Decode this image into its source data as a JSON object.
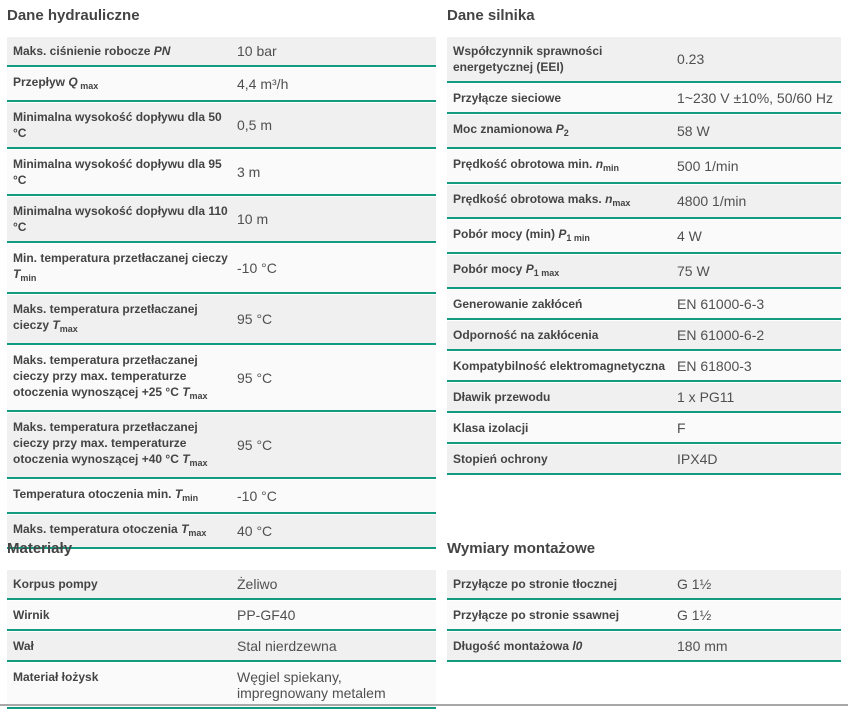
{
  "sections": [
    {
      "id": "hydraulic",
      "title": "Dane hydrauliczne",
      "rows": [
        {
          "label": [
            "Maks. ciśnienie robocze ",
            "PN",
            ""
          ],
          "value": "10 bar"
        },
        {
          "label": [
            "Przepływ ",
            "Q",
            " max"
          ],
          "value": "4,4 m³/h"
        },
        {
          "label": [
            "Minimalna wysokość dopływu dla 50 °C",
            "",
            ""
          ],
          "value": "0,5 m"
        },
        {
          "label": [
            "Minimalna wysokość dopływu dla 95 °C",
            "",
            ""
          ],
          "value": "3 m"
        },
        {
          "label": [
            "Minimalna wysokość dopływu dla 110 °C",
            "",
            ""
          ],
          "value": "10 m"
        },
        {
          "label": [
            "Min. temperatura przetłaczanej cieczy ",
            "T",
            "min"
          ],
          "value": "-10 °C"
        },
        {
          "label": [
            "Maks. temperatura przetłaczanej cieczy ",
            "T",
            "max"
          ],
          "value": "95 °C"
        },
        {
          "label": [
            "Maks. temperatura przetłaczanej cieczy przy max. temperaturze otoczenia wynoszącej +25 °C ",
            "T",
            "max"
          ],
          "value": "95 °C"
        },
        {
          "label": [
            "Maks. temperatura przetłaczanej cieczy przy max. temperaturze otoczenia wynoszącej +40 °C ",
            "T",
            "max"
          ],
          "value": "95 °C"
        },
        {
          "label": [
            "Temperatura otoczenia min. ",
            "T",
            "min"
          ],
          "value": "-10 °C"
        },
        {
          "label": [
            "Maks. temperatura otoczenia ",
            "T",
            "max"
          ],
          "value": "40 °C"
        }
      ]
    },
    {
      "id": "motor",
      "title": "Dane silnika",
      "rows": [
        {
          "label": [
            "Współczynnik sprawności energetycznej (EEI)",
            "",
            ""
          ],
          "value": "0.23"
        },
        {
          "label": [
            "Przyłącze sieciowe",
            "",
            ""
          ],
          "value": "1~230 V ±10%, 50/60 Hz"
        },
        {
          "label": [
            "Moc znamionowa ",
            "P",
            "2"
          ],
          "value": "58 W"
        },
        {
          "label": [
            "Prędkość obrotowa min. ",
            "n",
            "min"
          ],
          "value": "500 1/min"
        },
        {
          "label": [
            "Prędkość obrotowa maks. ",
            "n",
            "max"
          ],
          "value": "4800 1/min"
        },
        {
          "label": [
            "Pobór mocy (min) ",
            "P",
            "1 min"
          ],
          "value": "4 W"
        },
        {
          "label": [
            "Pobór mocy ",
            "P",
            "1 max"
          ],
          "value": "75 W"
        },
        {
          "label": [
            "Generowanie zakłóceń",
            "",
            ""
          ],
          "value": "EN 61000-6-3"
        },
        {
          "label": [
            "Odporność na zakłócenia",
            "",
            ""
          ],
          "value": "EN 61000-6-2"
        },
        {
          "label": [
            "Kompatybilność elektromagnetyczna",
            "",
            ""
          ],
          "value": "EN 61800-3"
        },
        {
          "label": [
            "Dławik przewodu",
            "",
            ""
          ],
          "value": "1 x PG11"
        },
        {
          "label": [
            "Klasa izolacji",
            "",
            ""
          ],
          "value": "F"
        },
        {
          "label": [
            "Stopień ochrony",
            "",
            ""
          ],
          "value": "IPX4D"
        }
      ]
    },
    {
      "id": "materials",
      "title": "Materiały",
      "rows": [
        {
          "label": [
            "Korpus pompy",
            "",
            ""
          ],
          "value": "Żeliwo"
        },
        {
          "label": [
            "Wirnik",
            "",
            ""
          ],
          "value": "PP-GF40"
        },
        {
          "label": [
            "Wał",
            "",
            ""
          ],
          "value": "Stal nierdzewna"
        },
        {
          "label": [
            "Materiał łożysk",
            "",
            ""
          ],
          "value": "Węgiel spiekany, impregnowany metalem"
        }
      ]
    },
    {
      "id": "dimensions",
      "title": "Wymiary montażowe",
      "rows": [
        {
          "label": [
            "Przyłącze po stronie tłocznej",
            "",
            ""
          ],
          "value": "G 1½"
        },
        {
          "label": [
            "Przyłącze po stronie ssawnej",
            "",
            ""
          ],
          "value": "G 1½"
        },
        {
          "label": [
            "Długość montażowa ",
            "l0",
            ""
          ],
          "value": "180 mm"
        }
      ]
    }
  ]
}
